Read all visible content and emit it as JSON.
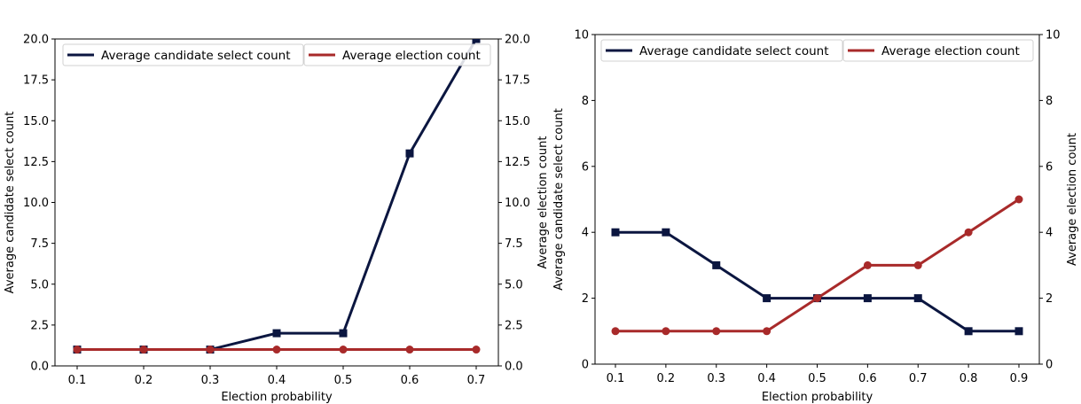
{
  "colors": {
    "select": "#0b1640",
    "election": "#a82a2a"
  },
  "chart_data": [
    {
      "type": "line",
      "xlabel": "Election probability",
      "ylabel_left": "Average candidate select count",
      "ylabel_right": "Average election count",
      "x": [
        0.1,
        0.2,
        0.3,
        0.4,
        0.5,
        0.6,
        0.7
      ],
      "xticks": [
        "0.1",
        "0.2",
        "0.3",
        "0.4",
        "0.5",
        "0.6",
        "0.7"
      ],
      "ylim": [
        0,
        20
      ],
      "yticks": [
        "0.0",
        "2.5",
        "5.0",
        "7.5",
        "10.0",
        "12.5",
        "15.0",
        "17.5",
        "20.0"
      ],
      "series": [
        {
          "name": "Average candidate select count",
          "axis": "left",
          "marker": "square",
          "values": [
            1,
            1,
            1,
            2,
            2,
            13,
            20
          ]
        },
        {
          "name": "Average election count",
          "axis": "right",
          "marker": "circle",
          "values": [
            1,
            1,
            1,
            1,
            1,
            1,
            1
          ]
        }
      ]
    },
    {
      "type": "line",
      "xlabel": "Election probability",
      "ylabel_left": "Average candidate select count",
      "ylabel_right": "Average election count",
      "x": [
        0.1,
        0.2,
        0.3,
        0.4,
        0.5,
        0.6,
        0.7,
        0.8,
        0.9
      ],
      "xticks": [
        "0.1",
        "0.2",
        "0.3",
        "0.4",
        "0.5",
        "0.6",
        "0.7",
        "0.8",
        "0.9"
      ],
      "ylim": [
        0,
        10
      ],
      "yticks": [
        "0",
        "2",
        "4",
        "6",
        "8",
        "10"
      ],
      "series": [
        {
          "name": "Average candidate select count",
          "axis": "left",
          "marker": "square",
          "values": [
            4,
            4,
            3,
            2,
            2,
            2,
            2,
            1,
            1
          ]
        },
        {
          "name": "Average election count",
          "axis": "right",
          "marker": "circle",
          "values": [
            1,
            1,
            1,
            1,
            2,
            3,
            3,
            4,
            5
          ]
        }
      ]
    }
  ]
}
